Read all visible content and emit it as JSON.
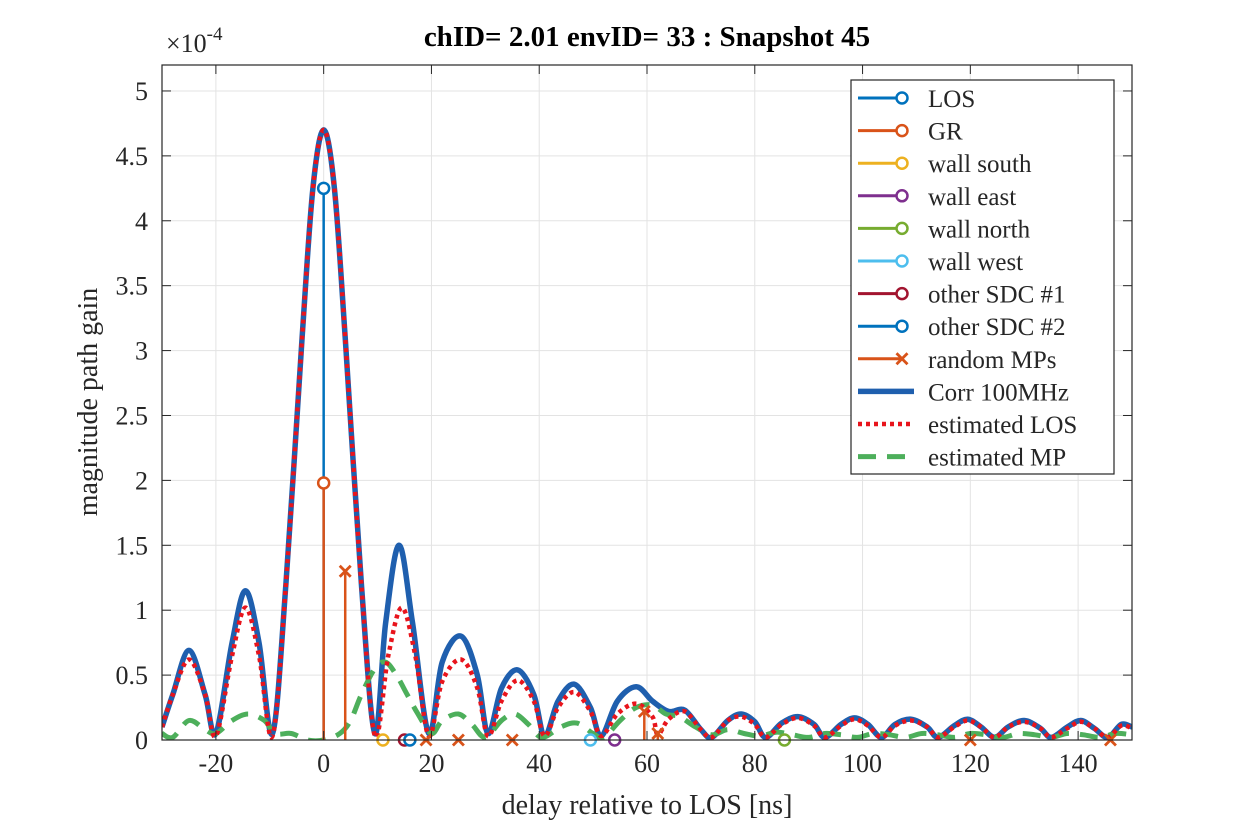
{
  "chart_data": {
    "type": "line",
    "title": "chID= 2.01 envID= 33 : Snapshot 45",
    "xlabel": "delay relative to LOS [ns]",
    "ylabel": "magnitude path gain",
    "y_multiplier_label": "×10",
    "y_multiplier_exponent": "-4",
    "xlim": [
      -30,
      150
    ],
    "ylim": [
      0,
      5.2
    ],
    "xticks": [
      -20,
      0,
      20,
      40,
      60,
      80,
      100,
      120,
      140
    ],
    "yticks": [
      0,
      0.5,
      1,
      1.5,
      2,
      2.5,
      3,
      3.5,
      4,
      4.5,
      5
    ],
    "grid": true,
    "legend_position": "top-right",
    "legend": [
      {
        "label": "LOS",
        "color": "#0072BD",
        "style": "stem-circle"
      },
      {
        "label": "GR",
        "color": "#D95319",
        "style": "stem-circle"
      },
      {
        "label": "wall south",
        "color": "#EDB120",
        "style": "stem-circle"
      },
      {
        "label": "wall east",
        "color": "#7E2F8E",
        "style": "stem-circle"
      },
      {
        "label": "wall north",
        "color": "#77AC30",
        "style": "stem-circle"
      },
      {
        "label": "wall west",
        "color": "#4DBEEE",
        "style": "stem-circle"
      },
      {
        "label": "other SDC #1",
        "color": "#A2142F",
        "style": "stem-circle"
      },
      {
        "label": "other SDC #2",
        "color": "#0072BD",
        "style": "stem-circle"
      },
      {
        "label": "random MPs",
        "color": "#D95319",
        "style": "stem-x"
      },
      {
        "label": "Corr 100MHz",
        "color": "#1f5fae",
        "style": "solid"
      },
      {
        "label": "estimated LOS",
        "color": "#e8141c",
        "style": "dotted"
      },
      {
        "label": "estimated MP",
        "color": "#4daf5b",
        "style": "dashed"
      }
    ],
    "stems": [
      {
        "series": "LOS",
        "color": "#0072BD",
        "marker": "o",
        "x": 0,
        "y": 4.25
      },
      {
        "series": "GR",
        "color": "#D95319",
        "marker": "o",
        "x": 0,
        "y": 1.98
      },
      {
        "series": "random MPs",
        "color": "#D95319",
        "marker": "x",
        "x": 4,
        "y": 1.3
      },
      {
        "series": "random MPs",
        "color": "#D95319",
        "marker": "x",
        "x": 59.5,
        "y": 0.22
      },
      {
        "series": "wall south",
        "color": "#EDB120",
        "marker": "o",
        "x": 11,
        "y": 0
      },
      {
        "series": "other SDC #1",
        "color": "#A2142F",
        "marker": "o",
        "x": 15,
        "y": 0
      },
      {
        "series": "other SDC #2",
        "color": "#0072BD",
        "marker": "o",
        "x": 16,
        "y": 0
      },
      {
        "series": "random MPs",
        "color": "#D95319",
        "marker": "x",
        "x": 19,
        "y": 0
      },
      {
        "series": "random MPs",
        "color": "#D95319",
        "marker": "x",
        "x": 25,
        "y": 0
      },
      {
        "series": "random MPs",
        "color": "#D95319",
        "marker": "x",
        "x": 35,
        "y": 0
      },
      {
        "series": "wall west",
        "color": "#4DBEEE",
        "marker": "o",
        "x": 49.5,
        "y": 0
      },
      {
        "series": "wall east",
        "color": "#7E2F8E",
        "marker": "o",
        "x": 54,
        "y": 0
      },
      {
        "series": "random MPs",
        "color": "#D95319",
        "marker": "x",
        "x": 62,
        "y": 0.05
      },
      {
        "series": "wall north",
        "color": "#77AC30",
        "marker": "o",
        "x": 85.5,
        "y": 0
      },
      {
        "series": "random MPs",
        "color": "#D95319",
        "marker": "x",
        "x": 120,
        "y": 0
      },
      {
        "series": "random MPs",
        "color": "#D95319",
        "marker": "x",
        "x": 146,
        "y": 0
      }
    ],
    "series": [
      {
        "name": "Corr 100MHz",
        "color": "#1f5fae",
        "points": [
          [
            -30,
            0.1
          ],
          [
            -28,
            0.35
          ],
          [
            -25,
            0.69
          ],
          [
            -22,
            0.35
          ],
          [
            -20,
            0.05
          ],
          [
            -17,
            0.75
          ],
          [
            -14.5,
            1.15
          ],
          [
            -12,
            0.75
          ],
          [
            -9.5,
            0.05
          ],
          [
            -7,
            1.2
          ],
          [
            -4,
            3.1
          ],
          [
            -2,
            4.25
          ],
          [
            0,
            4.7
          ],
          [
            2,
            4.25
          ],
          [
            4,
            3.1
          ],
          [
            7,
            1.2
          ],
          [
            9.5,
            0.05
          ],
          [
            11.5,
            0.9
          ],
          [
            14,
            1.5
          ],
          [
            16.5,
            0.9
          ],
          [
            19.5,
            0.05
          ],
          [
            22,
            0.6
          ],
          [
            25.5,
            0.8
          ],
          [
            28.5,
            0.5
          ],
          [
            30.5,
            0.05
          ],
          [
            33,
            0.4
          ],
          [
            36,
            0.54
          ],
          [
            39,
            0.35
          ],
          [
            41,
            0.03
          ],
          [
            43.5,
            0.3
          ],
          [
            46.5,
            0.43
          ],
          [
            49.5,
            0.25
          ],
          [
            51.5,
            0.03
          ],
          [
            54.5,
            0.3
          ],
          [
            58,
            0.41
          ],
          [
            61,
            0.3
          ],
          [
            64,
            0.22
          ],
          [
            67,
            0.23
          ],
          [
            70,
            0.08
          ],
          [
            72,
            0.02
          ],
          [
            75,
            0.15
          ],
          [
            77.5,
            0.2
          ],
          [
            80,
            0.14
          ],
          [
            82,
            0.02
          ],
          [
            85,
            0.13
          ],
          [
            88,
            0.18
          ],
          [
            91,
            0.12
          ],
          [
            93,
            0.02
          ],
          [
            96,
            0.12
          ],
          [
            98.5,
            0.17
          ],
          [
            101,
            0.12
          ],
          [
            103.5,
            0.02
          ],
          [
            106,
            0.12
          ],
          [
            109,
            0.16
          ],
          [
            112,
            0.1
          ],
          [
            114,
            0.02
          ],
          [
            117,
            0.11
          ],
          [
            119.5,
            0.16
          ],
          [
            122,
            0.1
          ],
          [
            124.5,
            0.02
          ],
          [
            127,
            0.1
          ],
          [
            130,
            0.15
          ],
          [
            133,
            0.09
          ],
          [
            135,
            0.02
          ],
          [
            138,
            0.1
          ],
          [
            140.5,
            0.15
          ],
          [
            143,
            0.09
          ],
          [
            145.5,
            0.02
          ],
          [
            148,
            0.12
          ],
          [
            150,
            0.1
          ]
        ]
      },
      {
        "name": "estimated LOS",
        "color": "#e8141c",
        "points": [
          [
            -30,
            0.1
          ],
          [
            -28,
            0.35
          ],
          [
            -25,
            0.62
          ],
          [
            -22,
            0.35
          ],
          [
            -20,
            0.03
          ],
          [
            -17,
            0.65
          ],
          [
            -14.5,
            1.02
          ],
          [
            -12,
            0.65
          ],
          [
            -9.5,
            0.03
          ],
          [
            -7,
            1.2
          ],
          [
            -4,
            3.1
          ],
          [
            -2,
            4.25
          ],
          [
            0,
            4.7
          ],
          [
            2,
            4.25
          ],
          [
            4,
            3.1
          ],
          [
            7,
            1.2
          ],
          [
            9.5,
            0.03
          ],
          [
            12,
            0.65
          ],
          [
            14.5,
            1.02
          ],
          [
            17,
            0.65
          ],
          [
            19.5,
            0.03
          ],
          [
            22,
            0.45
          ],
          [
            25.5,
            0.62
          ],
          [
            28.5,
            0.4
          ],
          [
            30.5,
            0.03
          ],
          [
            33,
            0.3
          ],
          [
            36,
            0.46
          ],
          [
            39,
            0.3
          ],
          [
            41,
            0.03
          ],
          [
            43.5,
            0.25
          ],
          [
            46.5,
            0.37
          ],
          [
            49.5,
            0.22
          ],
          [
            51.5,
            0.03
          ],
          [
            54.5,
            0.2
          ],
          [
            58,
            0.28
          ],
          [
            61,
            0.18
          ],
          [
            62,
            0.04
          ],
          [
            64,
            0.16
          ],
          [
            67,
            0.22
          ],
          [
            70,
            0.08
          ],
          [
            72,
            0.02
          ],
          [
            75,
            0.15
          ],
          [
            77.5,
            0.18
          ],
          [
            80,
            0.12
          ],
          [
            82,
            0.02
          ],
          [
            85,
            0.12
          ],
          [
            88,
            0.17
          ],
          [
            91,
            0.11
          ],
          [
            93,
            0.02
          ],
          [
            96,
            0.11
          ],
          [
            98.5,
            0.16
          ],
          [
            101,
            0.11
          ],
          [
            103.5,
            0.02
          ],
          [
            106,
            0.11
          ],
          [
            109,
            0.15
          ],
          [
            112,
            0.1
          ],
          [
            114,
            0.02
          ],
          [
            117,
            0.1
          ],
          [
            119.5,
            0.15
          ],
          [
            122,
            0.1
          ],
          [
            124.5,
            0.02
          ],
          [
            127,
            0.1
          ],
          [
            130,
            0.14
          ],
          [
            133,
            0.09
          ],
          [
            135,
            0.02
          ],
          [
            138,
            0.09
          ],
          [
            140.5,
            0.14
          ],
          [
            143,
            0.09
          ],
          [
            145.5,
            0.02
          ],
          [
            148,
            0.11
          ],
          [
            150,
            0.09
          ]
        ]
      },
      {
        "name": "estimated MP",
        "color": "#4daf5b",
        "points": [
          [
            -30,
            0.05
          ],
          [
            -28,
            0.02
          ],
          [
            -25,
            0.15
          ],
          [
            -22,
            0.08
          ],
          [
            -20,
            0.05
          ],
          [
            -17,
            0.15
          ],
          [
            -14,
            0.2
          ],
          [
            -11,
            0.15
          ],
          [
            -9,
            0.05
          ],
          [
            -6,
            0.05
          ],
          [
            -3,
            0.0
          ],
          [
            0,
            0.0
          ],
          [
            3,
            0.05
          ],
          [
            5,
            0.15
          ],
          [
            7,
            0.35
          ],
          [
            9.5,
            0.55
          ],
          [
            11.5,
            0.6
          ],
          [
            13.5,
            0.5
          ],
          [
            15.5,
            0.35
          ],
          [
            17.5,
            0.2
          ],
          [
            20,
            0.05
          ],
          [
            22,
            0.15
          ],
          [
            25,
            0.2
          ],
          [
            27.5,
            0.12
          ],
          [
            30,
            0.02
          ],
          [
            33,
            0.15
          ],
          [
            35.5,
            0.2
          ],
          [
            38,
            0.12
          ],
          [
            40.5,
            0.02
          ],
          [
            44,
            0.1
          ],
          [
            47,
            0.13
          ],
          [
            50,
            0.05
          ],
          [
            52,
            0.02
          ],
          [
            55,
            0.15
          ],
          [
            58,
            0.25
          ],
          [
            61,
            0.27
          ],
          [
            63.5,
            0.2
          ],
          [
            66,
            0.18
          ],
          [
            69,
            0.1
          ],
          [
            72,
            0.04
          ],
          [
            75,
            0.08
          ],
          [
            78,
            0.05
          ],
          [
            81,
            0.03
          ],
          [
            84,
            0.06
          ],
          [
            87,
            0.04
          ],
          [
            90,
            0.02
          ],
          [
            93,
            0.05
          ],
          [
            96,
            0.04
          ],
          [
            99,
            0.02
          ],
          [
            102,
            0.05
          ],
          [
            105,
            0.04
          ],
          [
            108,
            0.02
          ],
          [
            111,
            0.05
          ],
          [
            114,
            0.04
          ],
          [
            117,
            0.02
          ],
          [
            120,
            0.05
          ],
          [
            123,
            0.04
          ],
          [
            126,
            0.02
          ],
          [
            129,
            0.05
          ],
          [
            132,
            0.04
          ],
          [
            135,
            0.02
          ],
          [
            138,
            0.05
          ],
          [
            141,
            0.04
          ],
          [
            144,
            0.02
          ],
          [
            147,
            0.05
          ],
          [
            150,
            0.04
          ]
        ]
      }
    ]
  }
}
